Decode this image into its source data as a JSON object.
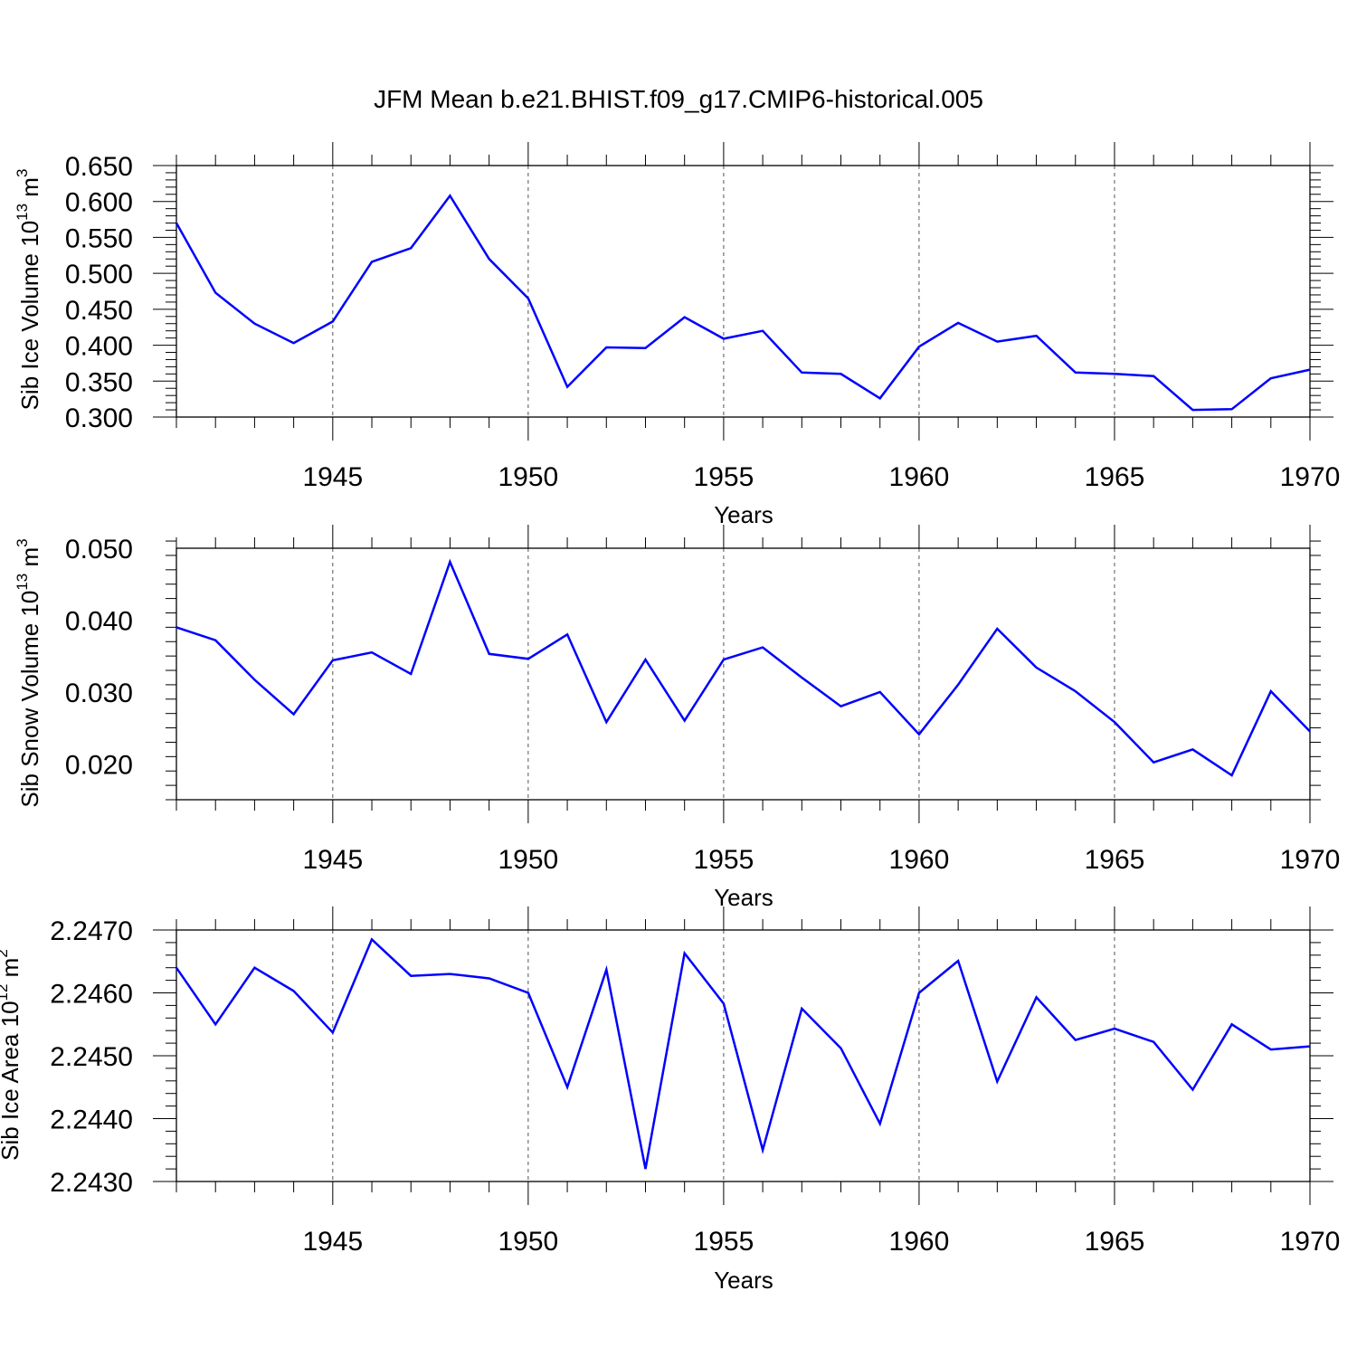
{
  "title": "JFM Mean b.e21.BHIST.f09_g17.CMIP6-historical.005",
  "chart_data": [
    {
      "type": "line",
      "ylabel": {
        "text": "Sib Ice Volume 10",
        "exp": "13",
        "unit": " m",
        "unit_exp": "3"
      },
      "xlabel": "Years",
      "xlim": [
        1941,
        1970
      ],
      "ylim": [
        0.3,
        0.65
      ],
      "yticks": [
        0.3,
        0.35,
        0.4,
        0.45,
        0.5,
        0.55,
        0.6,
        0.65
      ],
      "ytick_labels": [
        "0.300",
        "0.350",
        "0.400",
        "0.450",
        "0.500",
        "0.550",
        "0.600",
        "0.650"
      ],
      "xticks": [
        1945,
        1950,
        1955,
        1960,
        1965,
        1970
      ],
      "xtick_labels": [
        "1945",
        "1950",
        "1955",
        "1960",
        "1965",
        "1970"
      ],
      "color": "#0000ff",
      "x": [
        1941,
        1942,
        1943,
        1944,
        1945,
        1946,
        1947,
        1948,
        1949,
        1950,
        1951,
        1952,
        1953,
        1954,
        1955,
        1956,
        1957,
        1958,
        1959,
        1960,
        1961,
        1962,
        1963,
        1964,
        1965,
        1966,
        1967,
        1968,
        1969,
        1970
      ],
      "y": [
        0.57,
        0.473,
        0.43,
        0.403,
        0.433,
        0.516,
        0.535,
        0.608,
        0.52,
        0.465,
        0.342,
        0.397,
        0.396,
        0.439,
        0.409,
        0.42,
        0.362,
        0.36,
        0.326,
        0.398,
        0.431,
        0.405,
        0.413,
        0.362,
        0.36,
        0.357,
        0.31,
        0.311,
        0.354,
        0.366
      ]
    },
    {
      "type": "line",
      "ylabel": {
        "text": "Sib Snow Volume 10",
        "exp": "13",
        "unit": " m",
        "unit_exp": "3"
      },
      "xlabel": "Years",
      "xlim": [
        1941,
        1970
      ],
      "ylim": [
        0.015,
        0.05
      ],
      "yticks": [
        0.02,
        0.03,
        0.04,
        0.05
      ],
      "ytick_labels": [
        "0.020",
        "0.030",
        "0.040",
        "0.050"
      ],
      "xticks": [
        1945,
        1950,
        1955,
        1960,
        1965,
        1970
      ],
      "xtick_labels": [
        "1945",
        "1950",
        "1955",
        "1960",
        "1965",
        "1970"
      ],
      "color": "#0000ff",
      "x": [
        1941,
        1942,
        1943,
        1944,
        1945,
        1946,
        1947,
        1948,
        1949,
        1950,
        1951,
        1952,
        1953,
        1954,
        1955,
        1956,
        1957,
        1958,
        1959,
        1960,
        1961,
        1962,
        1963,
        1964,
        1965,
        1966,
        1967,
        1968,
        1969,
        1970
      ],
      "y": [
        0.039,
        0.0372,
        0.0317,
        0.0269,
        0.0344,
        0.0355,
        0.0325,
        0.0481,
        0.0353,
        0.0346,
        0.038,
        0.0258,
        0.0345,
        0.026,
        0.0345,
        0.0362,
        0.032,
        0.028,
        0.03,
        0.0241,
        0.031,
        0.0388,
        0.0334,
        0.0301,
        0.0258,
        0.0202,
        0.022,
        0.0184,
        0.0301,
        0.0245
      ]
    },
    {
      "type": "line",
      "ylabel": {
        "text": "Sib Ice Area 10",
        "exp": "12",
        "unit": " m",
        "unit_exp": "2"
      },
      "xlabel": "Years",
      "xlim": [
        1941,
        1970
      ],
      "ylim": [
        2.243,
        2.247
      ],
      "yticks": [
        2.243,
        2.244,
        2.245,
        2.246,
        2.247
      ],
      "ytick_labels": [
        "2.2430",
        "2.2440",
        "2.2450",
        "2.2460",
        "2.2470"
      ],
      "xticks": [
        1945,
        1950,
        1955,
        1960,
        1965,
        1970
      ],
      "xtick_labels": [
        "1945",
        "1950",
        "1955",
        "1960",
        "1965",
        "1970"
      ],
      "color": "#0000ff",
      "x": [
        1941,
        1942,
        1943,
        1944,
        1945,
        1946,
        1947,
        1948,
        1949,
        1950,
        1951,
        1952,
        1953,
        1954,
        1955,
        1956,
        1957,
        1958,
        1959,
        1960,
        1961,
        1962,
        1963,
        1964,
        1965,
        1966,
        1967,
        1968,
        1969,
        1970
      ],
      "y": [
        2.2464,
        2.2455,
        2.2464,
        2.24603,
        2.24537,
        2.24685,
        2.24627,
        2.2463,
        2.24623,
        2.246,
        2.2445,
        2.24637,
        2.2432,
        2.24663,
        2.24583,
        2.2435,
        2.24575,
        2.24512,
        2.24392,
        2.246,
        2.24651,
        2.24459,
        2.24593,
        2.24525,
        2.24543,
        2.24522,
        2.24446,
        2.2455,
        2.2451,
        2.24515
      ]
    }
  ]
}
